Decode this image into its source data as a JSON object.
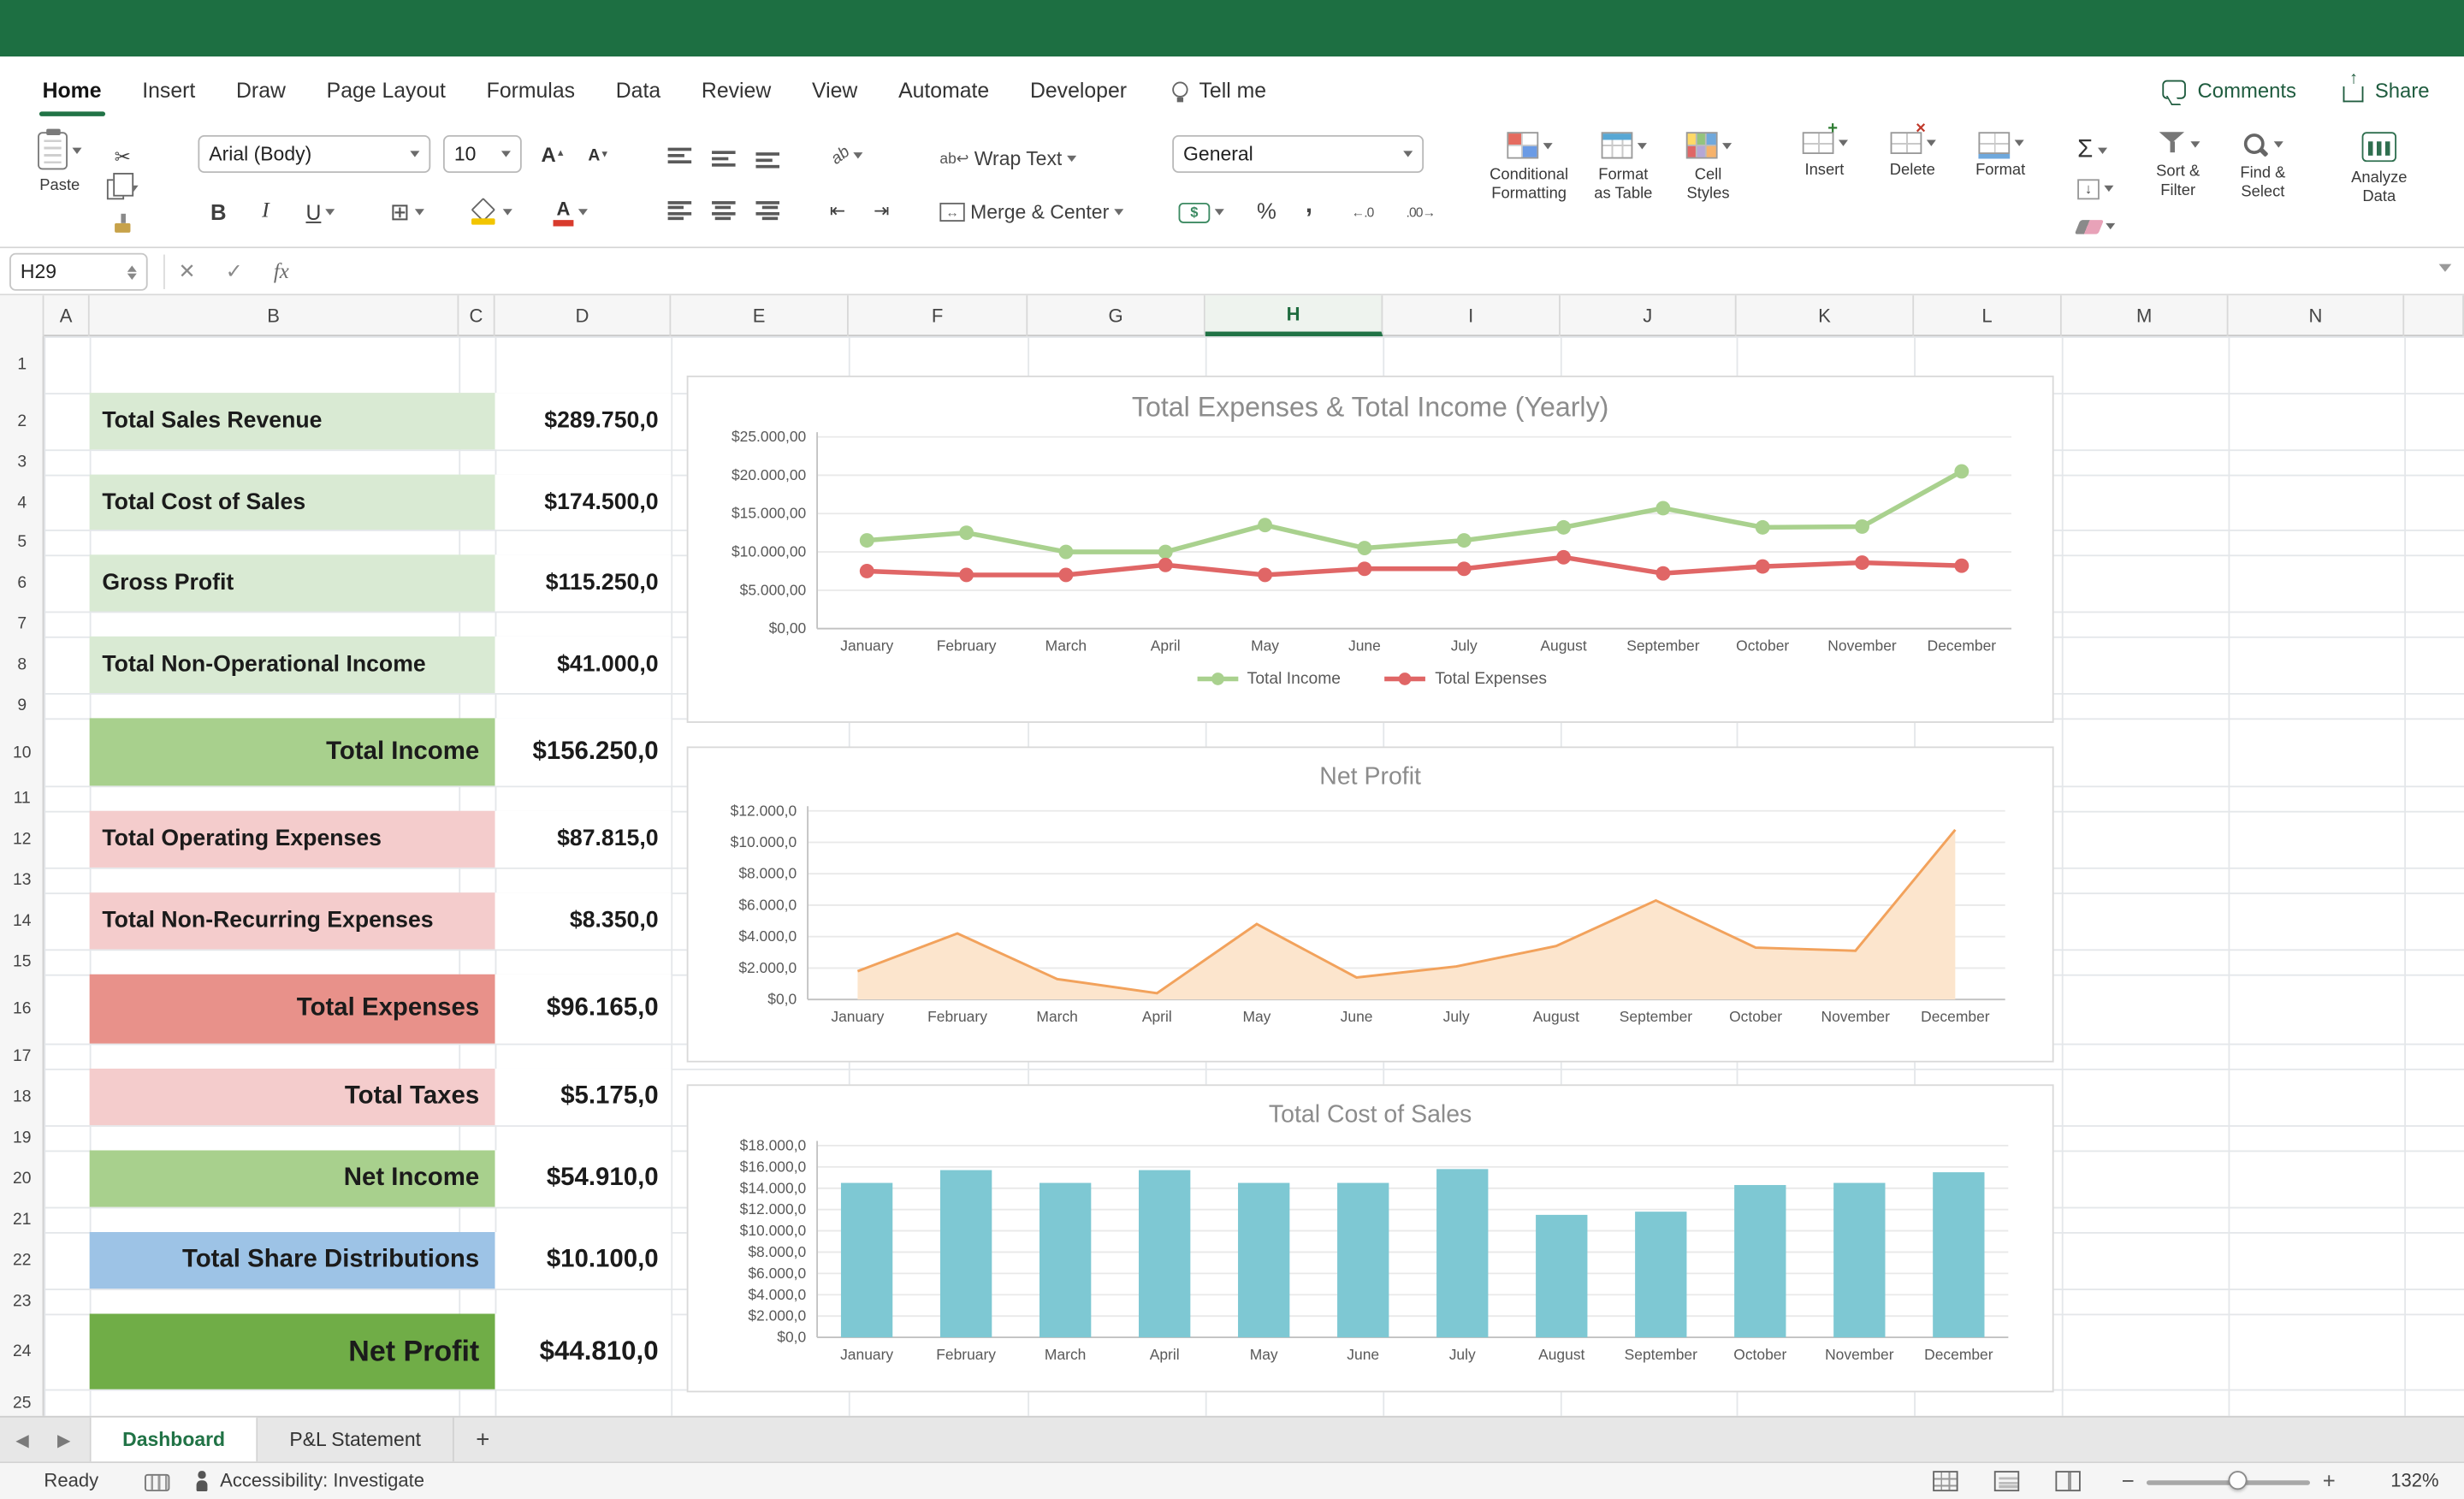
{
  "window": {
    "titlebar_color": "#1d6f42",
    "accent_green": "#217346"
  },
  "ribbon_tabs": {
    "items": [
      "Home",
      "Insert",
      "Draw",
      "Page Layout",
      "Formulas",
      "Data",
      "Review",
      "View",
      "Automate",
      "Developer"
    ],
    "active": "Home",
    "tell_me": "Tell me",
    "comments": "Comments",
    "share": "Share"
  },
  "ribbon": {
    "paste": "Paste",
    "font_name": "Arial (Body)",
    "font_size": "10",
    "wrap_text": "Wrap Text",
    "merge_center": "Merge & Center",
    "number_format": "General",
    "conditional_formatting": "Conditional\nFormatting",
    "format_as_table": "Format\nas Table",
    "cell_styles": "Cell\nStyles",
    "insert": "Insert",
    "delete": "Delete",
    "format": "Format",
    "sort_filter": "Sort &\nFilter",
    "find_select": "Find &\nSelect",
    "analyze_data": "Analyze\nData"
  },
  "formula_bar": {
    "cell_ref": "H29",
    "fx_label": "fx"
  },
  "grid": {
    "columns": [
      "A",
      "B",
      "C",
      "D",
      "E",
      "F",
      "G",
      "H",
      "I",
      "J",
      "K",
      "L",
      "M",
      "N"
    ],
    "active_column": "H",
    "rows": [
      1,
      2,
      3,
      4,
      5,
      6,
      7,
      8,
      9,
      10,
      11,
      12,
      13,
      14,
      15,
      16,
      17,
      18,
      19,
      20,
      21,
      22,
      23,
      24,
      25
    ]
  },
  "sheet": {
    "colors": {
      "light_green": "#d9ead3",
      "green": "#a8d08d",
      "dark_green": "#70ad47",
      "light_red": "#f4cccc",
      "red": "#e8918a",
      "blue": "#9dc3e6"
    },
    "items": [
      {
        "label": "Total Sales Revenue",
        "value": "$289.750,0",
        "style": "light_green",
        "align": "left",
        "emphasis": false,
        "large": false
      },
      {
        "label": "Total Cost of Sales",
        "value": "$174.500,0",
        "style": "light_green",
        "align": "left",
        "emphasis": false,
        "large": false
      },
      {
        "label": "Gross Profit",
        "value": "$115.250,0",
        "style": "light_green",
        "align": "left",
        "emphasis": false,
        "large": false
      },
      {
        "label": "Total Non-Operational Income",
        "value": "$41.000,0",
        "style": "light_green",
        "align": "left",
        "emphasis": false,
        "large": false
      },
      {
        "label": "Total Income",
        "value": "$156.250,0",
        "style": "green",
        "align": "right",
        "emphasis": true,
        "large": false
      },
      {
        "label": "Total Operating Expenses",
        "value": "$87.815,0",
        "style": "light_red",
        "align": "left",
        "emphasis": false,
        "large": false
      },
      {
        "label": "Total Non-Recurring Expenses",
        "value": "$8.350,0",
        "style": "light_red",
        "align": "left",
        "emphasis": false,
        "large": false
      },
      {
        "label": "Total Expenses",
        "value": "$96.165,0",
        "style": "red",
        "align": "right",
        "emphasis": true,
        "large": false
      },
      {
        "label": "Total Taxes",
        "value": "$5.175,0",
        "style": "light_red",
        "align": "right",
        "emphasis": true,
        "large": false
      },
      {
        "label": "Net Income",
        "value": "$54.910,0",
        "style": "green",
        "align": "right",
        "emphasis": true,
        "large": false
      },
      {
        "label": "Total Share Distributions",
        "value": "$10.100,0",
        "style": "blue",
        "align": "right",
        "emphasis": true,
        "large": false
      },
      {
        "label": "Net Profit",
        "value": "$44.810,0",
        "style": "dark_green",
        "align": "right",
        "emphasis": true,
        "large": true
      }
    ]
  },
  "sheet_tabs": {
    "tabs": [
      "Dashboard",
      "P&L Statement"
    ],
    "active": "Dashboard",
    "add_label": "+"
  },
  "status_bar": {
    "ready": "Ready",
    "accessibility": "Accessibility: Investigate",
    "zoom": "132%"
  },
  "chart_data": [
    {
      "type": "line",
      "title": "Total Expenses & Total Income (Yearly)",
      "xlabel": "",
      "ylabel": "",
      "categories": [
        "January",
        "February",
        "March",
        "April",
        "May",
        "June",
        "July",
        "August",
        "September",
        "October",
        "November",
        "December"
      ],
      "series": [
        {
          "name": "Total Income",
          "color": "#a9d18e",
          "values": [
            11500,
            12500,
            10000,
            10000,
            13500,
            10500,
            11500,
            13200,
            15700,
            13200,
            13300,
            20500
          ]
        },
        {
          "name": "Total Expenses",
          "color": "#e06666",
          "values": [
            7500,
            7000,
            7000,
            8300,
            7000,
            7800,
            7800,
            9300,
            7200,
            8100,
            8600,
            8200
          ]
        }
      ],
      "ylim": [
        0,
        25000
      ],
      "yticks": {
        "values": [
          0,
          5000,
          10000,
          15000,
          20000,
          25000
        ],
        "labels": [
          "$0,00",
          "$5.000,00",
          "$10.000,00",
          "$15.000,00",
          "$20.000,00",
          "$25.000,00"
        ]
      },
      "legend": true,
      "legend_position": "bottom",
      "grid": true
    },
    {
      "type": "area",
      "title": "Net Profit",
      "xlabel": "",
      "ylabel": "",
      "categories": [
        "January",
        "February",
        "March",
        "April",
        "May",
        "June",
        "July",
        "August",
        "September",
        "October",
        "November",
        "December"
      ],
      "series": [
        {
          "name": "Net Profit",
          "color": "#f2a25c",
          "fill": "#fce5cd",
          "values": [
            1800,
            4200,
            1300,
            400,
            4800,
            1400,
            2100,
            3400,
            6300,
            3300,
            3100,
            10800
          ]
        }
      ],
      "ylim": [
        0,
        12000
      ],
      "yticks": {
        "values": [
          0,
          2000,
          4000,
          6000,
          8000,
          10000,
          12000
        ],
        "labels": [
          "$0,0",
          "$2.000,0",
          "$4.000,0",
          "$6.000,0",
          "$8.000,0",
          "$10.000,0",
          "$12.000,0"
        ]
      },
      "legend": false,
      "grid": true
    },
    {
      "type": "bar",
      "title": "Total Cost of Sales",
      "xlabel": "",
      "ylabel": "",
      "categories": [
        "January",
        "February",
        "March",
        "April",
        "May",
        "June",
        "July",
        "August",
        "September",
        "October",
        "November",
        "December"
      ],
      "series": [
        {
          "name": "Total Cost of Sales",
          "color": "#7ec8d3",
          "values": [
            14500,
            15700,
            14500,
            15700,
            14500,
            14500,
            15800,
            11500,
            11800,
            14300,
            14500,
            15500
          ]
        }
      ],
      "ylim": [
        0,
        18000
      ],
      "yticks": {
        "values": [
          0,
          2000,
          4000,
          6000,
          8000,
          10000,
          12000,
          14000,
          16000,
          18000
        ],
        "labels": [
          "$0,0",
          "$2.000,0",
          "$4.000,0",
          "$6.000,0",
          "$8.000,0",
          "$10.000,0",
          "$12.000,0",
          "$14.000,0",
          "$16.000,0",
          "$18.000,0"
        ]
      },
      "legend": false,
      "grid": true
    }
  ]
}
